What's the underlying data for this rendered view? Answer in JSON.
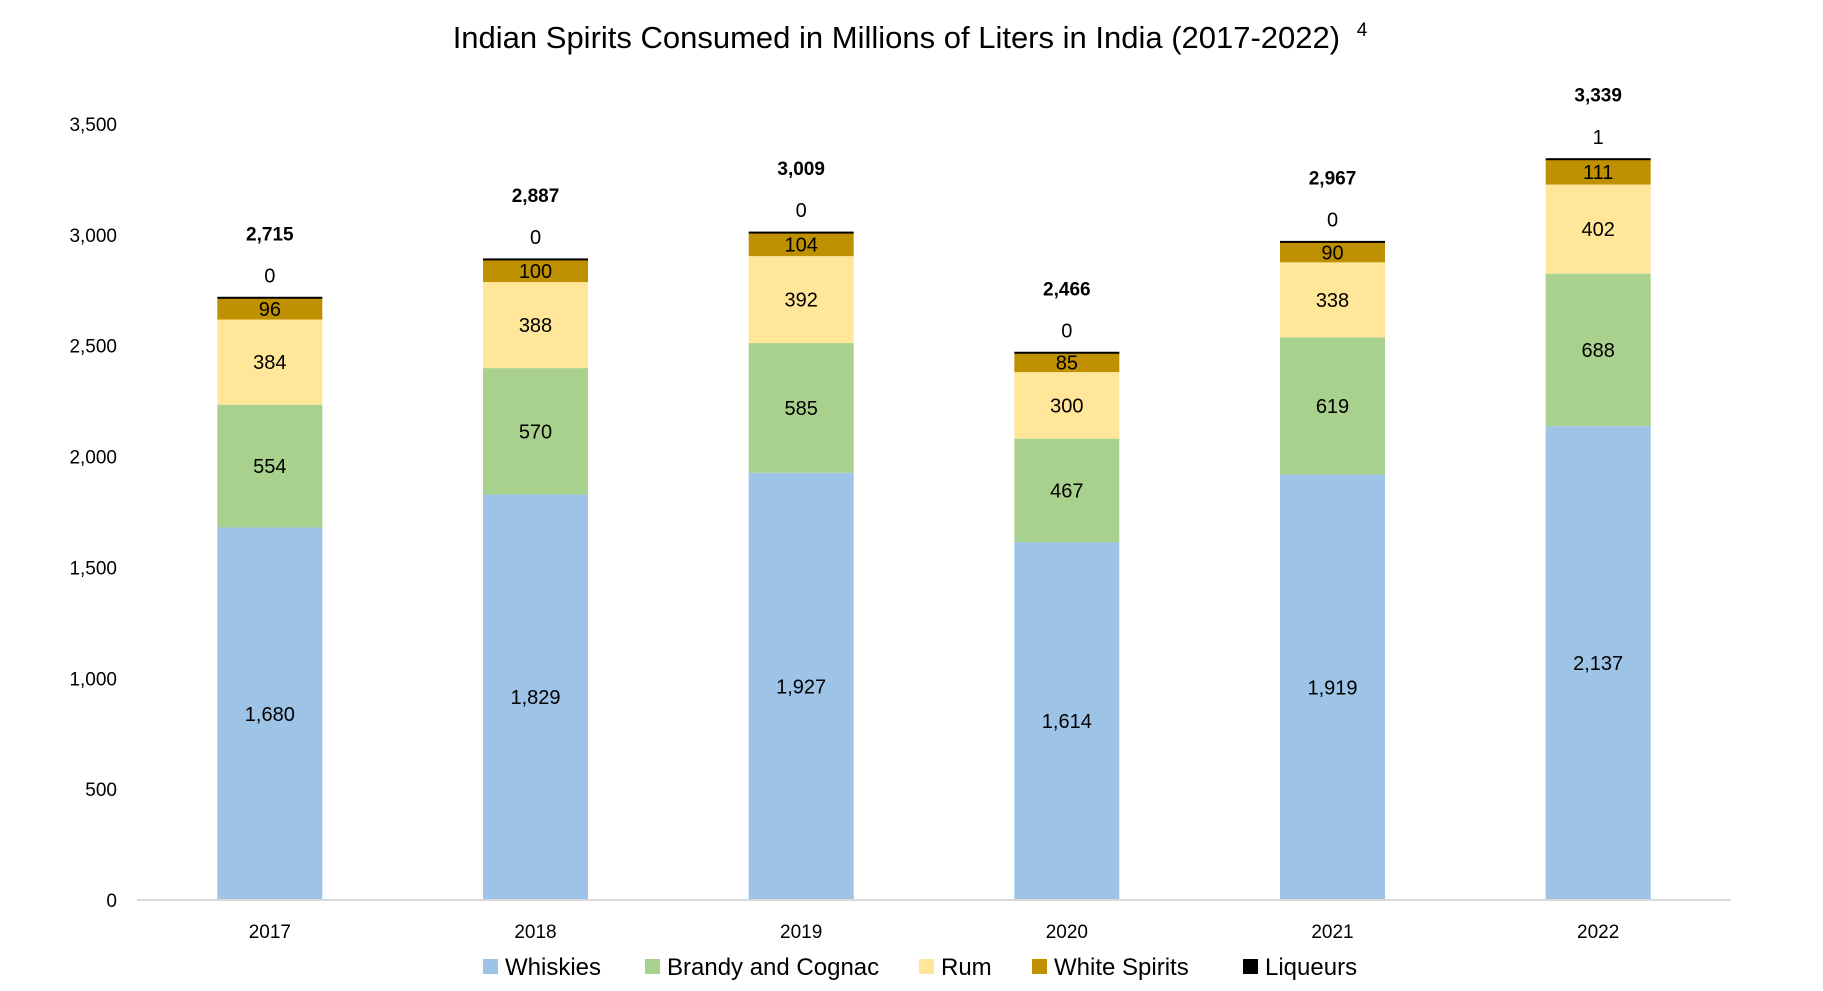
{
  "chart_data": {
    "type": "bar",
    "stacked": true,
    "title": "Indian Spirits Consumed in Millions of Liters in India (2017-2022)",
    "title_superscript": "4",
    "xlabel": "",
    "ylabel": "",
    "categories": [
      "2017",
      "2018",
      "2019",
      "2020",
      "2021",
      "2022"
    ],
    "ylim": [
      0,
      3500
    ],
    "yticks": [
      0,
      500,
      1000,
      1500,
      2000,
      2500,
      3000,
      3500
    ],
    "ytick_labels": [
      "0",
      "500",
      "1,000",
      "1,500",
      "2,000",
      "2,500",
      "3,000",
      "3,500"
    ],
    "grid": false,
    "legend_position": "bottom",
    "series": [
      {
        "name": "Whiskies",
        "color": "#9DC3E6",
        "values": [
          1680,
          1829,
          1927,
          1614,
          1919,
          2137
        ],
        "labels": [
          "1,680",
          "1,829",
          "1,927",
          "1,614",
          "1,919",
          "2,137"
        ]
      },
      {
        "name": "Brandy and Cognac",
        "color": "#A9D18E",
        "values": [
          554,
          570,
          585,
          467,
          619,
          688
        ],
        "labels": [
          "554",
          "570",
          "585",
          "467",
          "619",
          "688"
        ]
      },
      {
        "name": "Rum",
        "color": "#FFE699",
        "values": [
          384,
          388,
          392,
          300,
          338,
          402
        ],
        "labels": [
          "384",
          "388",
          "392",
          "300",
          "338",
          "402"
        ]
      },
      {
        "name": "White Spirits",
        "color": "#BF9000",
        "values": [
          96,
          100,
          104,
          85,
          90,
          111
        ],
        "labels": [
          "96",
          "100",
          "104",
          "85",
          "90",
          "111"
        ]
      },
      {
        "name": "Liqueurs",
        "color": "#000000",
        "values": [
          0,
          0,
          0,
          0,
          0,
          1
        ],
        "labels": [
          "0",
          "0",
          "0",
          "0",
          "0",
          "1"
        ]
      }
    ],
    "totals": [
      2715,
      2887,
      3009,
      2466,
      2967,
      3339
    ],
    "total_labels": [
      "2,715",
      "2,887",
      "3,009",
      "2,466",
      "2,967",
      "3,339"
    ]
  }
}
